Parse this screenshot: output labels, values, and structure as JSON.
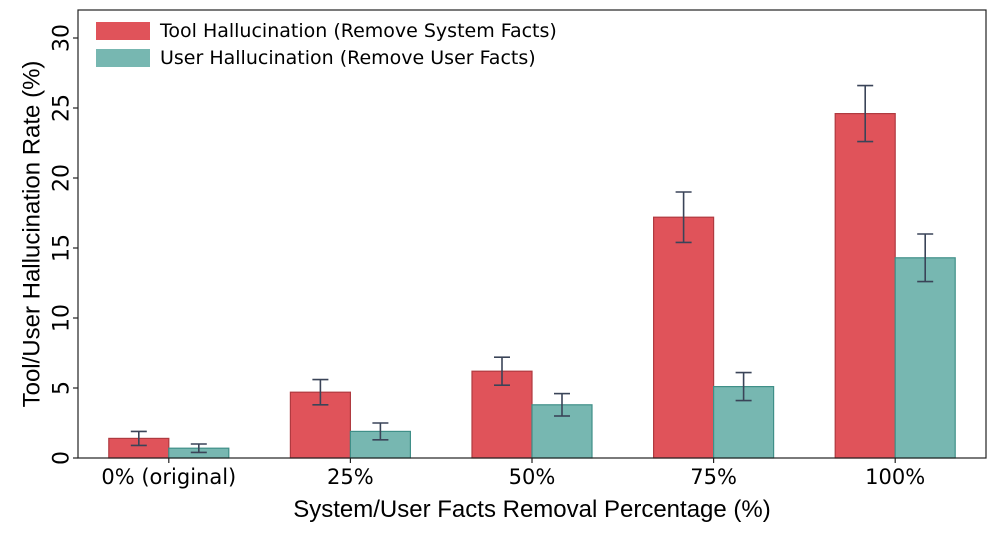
{
  "chart_data": {
    "type": "bar",
    "categories": [
      "0% (original)",
      "25%",
      "50%",
      "75%",
      "100%"
    ],
    "series": [
      {
        "name": "Tool Hallucination (Remove System Facts)",
        "values": [
          1.4,
          4.7,
          6.2,
          17.2,
          24.6
        ],
        "errors": [
          0.5,
          0.9,
          1.0,
          1.8,
          2.0
        ],
        "color": "#e0535a"
      },
      {
        "name": "User Hallucination (Remove User Facts)",
        "values": [
          0.7,
          1.9,
          3.8,
          5.1,
          14.3
        ],
        "errors": [
          0.3,
          0.6,
          0.8,
          1.0,
          1.7
        ],
        "color": "#77b7b1"
      }
    ],
    "yticks": [
      0,
      5,
      10,
      15,
      20,
      25,
      30
    ],
    "ylim": [
      0,
      32
    ],
    "xlabel": "System/User Facts Removal Percentage (%)",
    "ylabel": "Tool/User Hallucination Rate (%)",
    "legend_position": "top-left",
    "grid": false,
    "error_bar_color": "#3a4458"
  }
}
